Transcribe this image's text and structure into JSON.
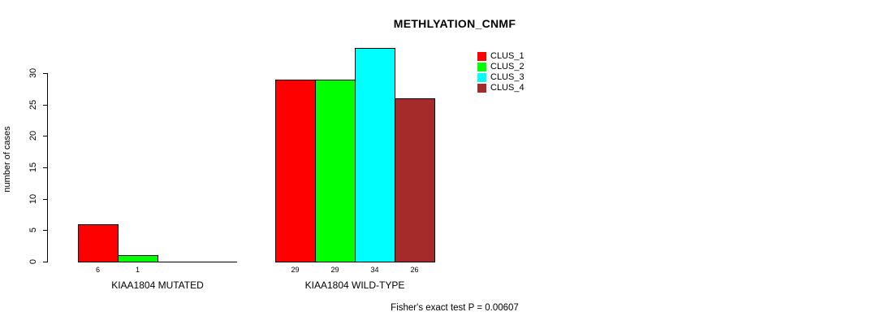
{
  "chart_data": {
    "type": "bar",
    "title": "METHLYATION_CNMF",
    "ylabel": "number of cases",
    "xlabel": "",
    "ylim": [
      0,
      30
    ],
    "yticks": [
      0,
      5,
      10,
      15,
      20,
      25,
      30
    ],
    "grid": false,
    "legend_position": "top-right",
    "series": [
      {
        "name": "CLUS_1",
        "color": "#FF0000"
      },
      {
        "name": "CLUS_2",
        "color": "#00FF00"
      },
      {
        "name": "CLUS_3",
        "color": "#00FFFF"
      },
      {
        "name": "CLUS_4",
        "color": "#A52A2A"
      }
    ],
    "groups": [
      {
        "label": "KIAA1804 MUTATED",
        "values": [
          6,
          1,
          0,
          0
        ],
        "value_labels": [
          "6",
          "1",
          "",
          ""
        ]
      },
      {
        "label": "KIAA1804 WILD-TYPE",
        "values": [
          29,
          29,
          34,
          26
        ],
        "value_labels": [
          "29",
          "29",
          "34",
          "26"
        ]
      }
    ],
    "footnote": "Fisher's exact test P = 0.00607"
  }
}
